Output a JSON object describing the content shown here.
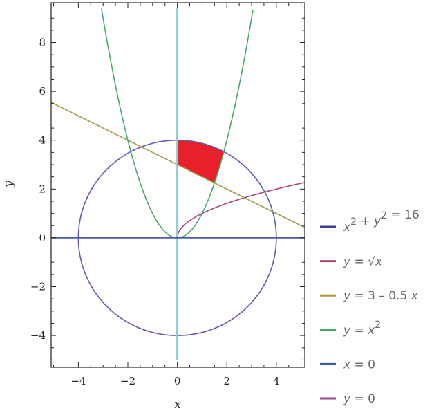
{
  "chart_data": {
    "type": "line",
    "xlabel": "x",
    "ylabel": "y",
    "xlim": [
      -5.1,
      5.15
    ],
    "ylim": [
      -5.3,
      9.63
    ],
    "x_ticks": [
      -4,
      -2,
      0,
      2,
      4
    ],
    "y_ticks": [
      -4,
      -2,
      0,
      2,
      4,
      6,
      8
    ],
    "x_tick_labels": [
      "−4",
      "−2",
      "0",
      "2",
      "4"
    ],
    "y_tick_labels": [
      "−4",
      "−2",
      "0",
      "2",
      "4",
      "6",
      "8"
    ],
    "grid": false,
    "legend_position": "right",
    "series": [
      {
        "name": "x^2 + y^2 = 16",
        "kind": "circle",
        "r": 4,
        "color": "#5a5ab0"
      },
      {
        "name": "y = sqrt(x)",
        "kind": "sqrt",
        "x_range": [
          0,
          5.15
        ],
        "color": "#a8447a"
      },
      {
        "name": "y = 3 - 0.5 x",
        "kind": "linear",
        "intercept": 3,
        "slope": -0.5,
        "color": "#a89848"
      },
      {
        "name": "y = x^2",
        "kind": "parabola",
        "y_max": 9.4,
        "color": "#48a868"
      },
      {
        "name": "x = 0",
        "kind": "vertical",
        "x": 0,
        "y_range": [
          -5,
          9.4
        ],
        "color": "#8ccbd2"
      },
      {
        "name": "y = 0",
        "kind": "horizontal",
        "y": 0,
        "color": "#4a58a8"
      }
    ],
    "shaded_region": {
      "color": "#e8202a",
      "vertices_description": "bounded by x=0, y=3-0.5x, y=x^2 and x^2+y^2=16",
      "corners": [
        [
          0,
          3
        ],
        [
          1.5,
          2.25
        ],
        [
          1.879,
          3.531
        ],
        [
          0,
          4
        ]
      ]
    }
  },
  "legend": [
    {
      "parts": [
        [
          "x",
          "i"
        ],
        [
          "2",
          "sup"
        ],
        [
          " + ",
          "n"
        ],
        [
          "y",
          "i"
        ],
        [
          "2",
          "sup"
        ],
        [
          " = 16",
          "n"
        ]
      ],
      "color": "#3c3ca0"
    },
    {
      "parts": [
        [
          "y",
          "i"
        ],
        [
          " = ",
          "n"
        ],
        [
          "√",
          "n"
        ],
        [
          "x",
          "i"
        ]
      ],
      "color": "#a8446e"
    },
    {
      "parts": [
        [
          "y",
          "i"
        ],
        [
          " = 3 – 0.5 ",
          "n"
        ],
        [
          "x",
          "i"
        ]
      ],
      "color": "#a89838"
    },
    {
      "parts": [
        [
          "y",
          "i"
        ],
        [
          " = ",
          "n"
        ],
        [
          "x",
          "i"
        ],
        [
          "2",
          "sup"
        ]
      ],
      "color": "#3ca860"
    },
    {
      "parts": [
        [
          "x",
          "i"
        ],
        [
          " = 0",
          "n"
        ]
      ],
      "color": "#3c5aa8"
    },
    {
      "parts": [
        [
          "y",
          "i"
        ],
        [
          " = 0",
          "n"
        ]
      ],
      "color": "#a0449c"
    }
  ]
}
